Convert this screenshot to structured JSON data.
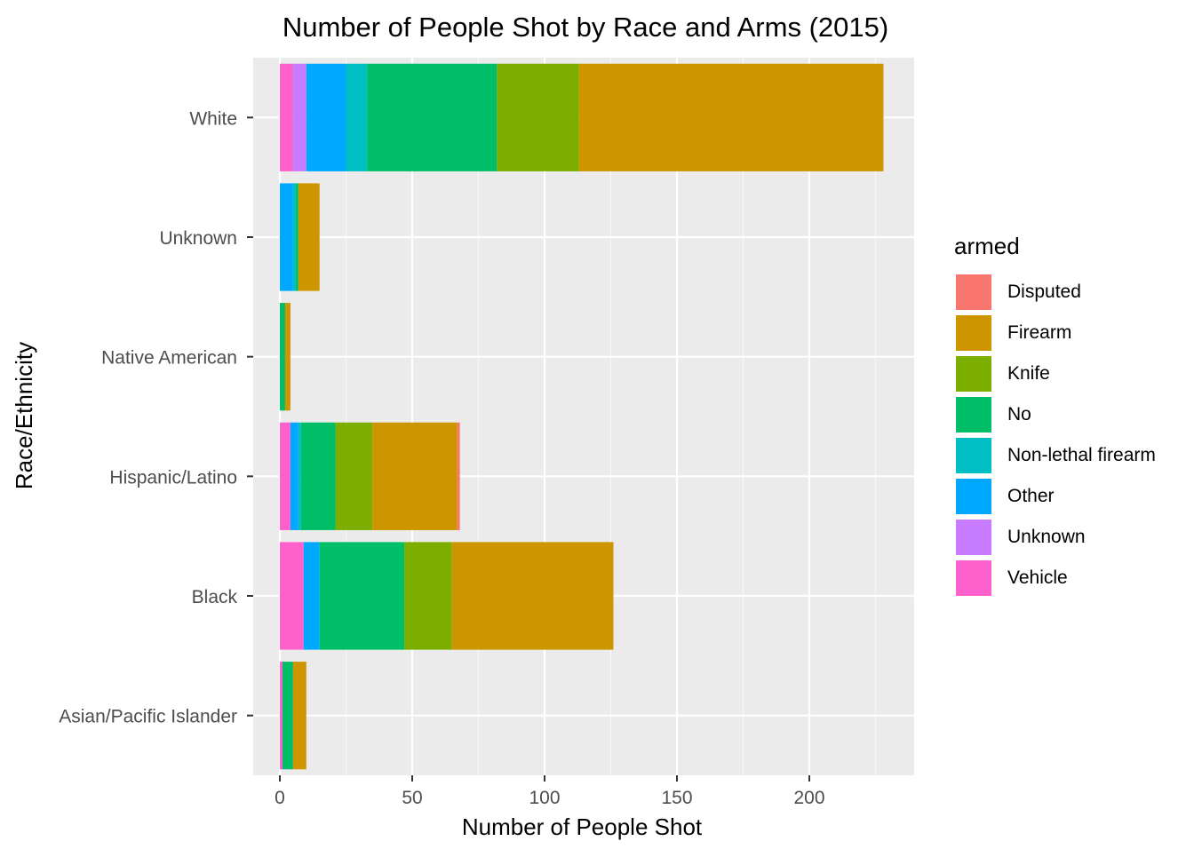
{
  "chart_data": {
    "type": "bar",
    "orientation": "horizontal",
    "stacked": true,
    "title": "Number of People Shot by Race and Arms (2015)",
    "xlabel": "Number of People Shot",
    "ylabel": "Race/Ethnicity",
    "xlim": [
      0,
      240
    ],
    "x_ticks": [
      0,
      50,
      100,
      150,
      200
    ],
    "grid": true,
    "legend": {
      "title": "armed",
      "placement": "right"
    },
    "categories": [
      "Asian/Pacific Islander",
      "Black",
      "Hispanic/Latino",
      "Native American",
      "Unknown",
      "White"
    ],
    "series": [
      {
        "name": "Vehicle",
        "color": "#FF61CC",
        "values": [
          1,
          9,
          4,
          0,
          0,
          5
        ]
      },
      {
        "name": "Unknown",
        "color": "#C77CFF",
        "values": [
          0,
          0,
          0,
          0,
          0,
          5
        ]
      },
      {
        "name": "Other",
        "color": "#00A9FF",
        "values": [
          0,
          6,
          3,
          0,
          5,
          15
        ]
      },
      {
        "name": "Non-lethal firearm",
        "color": "#00BFC4",
        "values": [
          0,
          0,
          1,
          0,
          1,
          8
        ]
      },
      {
        "name": "No",
        "color": "#00BE67",
        "values": [
          4,
          32,
          13,
          2,
          1,
          49
        ]
      },
      {
        "name": "Knife",
        "color": "#7CAE00",
        "values": [
          0,
          18,
          14,
          0,
          0,
          31
        ]
      },
      {
        "name": "Firearm",
        "color": "#CD9600",
        "values": [
          5,
          61,
          32,
          2,
          8,
          115
        ]
      },
      {
        "name": "Disputed",
        "color": "#F8766D",
        "values": [
          0,
          0,
          1,
          0,
          0,
          0
        ]
      }
    ]
  },
  "legend_items": [
    {
      "label": "Disputed",
      "color": "#F8766D"
    },
    {
      "label": "Firearm",
      "color": "#CD9600"
    },
    {
      "label": "Knife",
      "color": "#7CAE00"
    },
    {
      "label": "No",
      "color": "#00BE67"
    },
    {
      "label": "Non-lethal firearm",
      "color": "#00BFC4"
    },
    {
      "label": "Other",
      "color": "#00A9FF"
    },
    {
      "label": "Unknown",
      "color": "#C77CFF"
    },
    {
      "label": "Vehicle",
      "color": "#FF61CC"
    }
  ]
}
